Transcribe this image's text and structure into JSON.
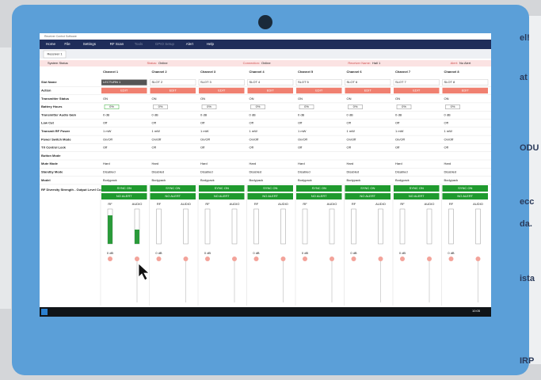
{
  "window_title": "Receiver Control Software",
  "menu": [
    "Home",
    "File",
    "Settings",
    "RF Scan",
    "Tools",
    "GPIO Setup",
    "Alert",
    "Help"
  ],
  "tab": "Receiver 1",
  "status": {
    "label": "System Status",
    "items": [
      {
        "label": "Status:",
        "value": "Online"
      },
      {
        "label": "Connection:",
        "value": "Online"
      },
      {
        "label": "Receiver Name:",
        "value": "Hall 1"
      },
      {
        "label": "Alert:",
        "value": "No Alert"
      }
    ]
  },
  "channels": [
    "Channel 1",
    "Channel 2",
    "Channel 3",
    "Channel 4",
    "Channel 5",
    "Channel 6",
    "Channel 7",
    "Channel 8"
  ],
  "rows": [
    {
      "label": "Slot Name",
      "values": [
        "LECTURN 1",
        "SLOT 2",
        "SLOT 3",
        "SLOT 4",
        "SLOT 5",
        "SLOT 6",
        "SLOT 7",
        "SLOT 8"
      ]
    },
    {
      "label": "Action",
      "values": [
        "EDIT",
        "EDIT",
        "EDIT",
        "EDIT",
        "EDIT",
        "EDIT",
        "EDIT",
        "EDIT"
      ]
    },
    {
      "label": "Transmitter Status",
      "values": [
        "ON",
        "ON",
        "ON",
        "ON",
        "ON",
        "ON",
        "ON",
        "ON"
      ]
    },
    {
      "label": "Battery Hours",
      "values": [
        "0%",
        "0%",
        "0%",
        "0%",
        "0%",
        "0%",
        "0%",
        "0%"
      ]
    },
    {
      "label": "Transmitter Audio Gain",
      "values": [
        "0 dB",
        "0 dB",
        "0 dB",
        "0 dB",
        "0 dB",
        "0 dB",
        "0 dB",
        "0 dB"
      ]
    },
    {
      "label": "Low Cut",
      "values": [
        "Off",
        "Off",
        "Off",
        "Off",
        "Off",
        "Off",
        "Off",
        "Off"
      ]
    },
    {
      "label": "Transmit RF Power",
      "values": [
        "1 mW",
        "1 mW",
        "1 mW",
        "1 mW",
        "1 mW",
        "1 mW",
        "1 mW",
        "1 mW"
      ]
    },
    {
      "label": "Power Switch Mode",
      "values": [
        "On/Off",
        "On/Off",
        "On/Off",
        "On/Off",
        "On/Off",
        "On/Off",
        "On/Off",
        "On/Off"
      ]
    },
    {
      "label": "TX Control Lock",
      "values": [
        "Off",
        "Off",
        "Off",
        "Off",
        "Off",
        "Off",
        "Off",
        "Off"
      ]
    },
    {
      "label": "Button Mode",
      "values": [
        null,
        null,
        null,
        null,
        null,
        null,
        null,
        null
      ]
    },
    {
      "label": "Mute Mode",
      "values": [
        "Hard",
        "Hard",
        "Hard",
        "Hard",
        "Hard",
        "Hard",
        "Hard",
        "Hard"
      ]
    },
    {
      "label": "Standby Mode",
      "values": [
        "Disabled",
        "Disabled",
        "Disabled",
        "Disabled",
        "Disabled",
        "Disabled",
        "Disabled",
        "Disabled"
      ]
    },
    {
      "label": "Model",
      "values": [
        "Bodypack",
        "Bodypack",
        "Bodypack",
        "Bodypack",
        "Bodypack",
        "Bodypack",
        "Bodypack",
        "Bodypack"
      ]
    }
  ],
  "controls_label": "RF Diversity Strength - Output Level Controls",
  "sync": "SYNC ON",
  "alert": "NO ALERT",
  "meter_labels": [
    "RF",
    "AUDIO"
  ],
  "output_levels": [
    "0 dB",
    "0 dB",
    "0 dB",
    "0 dB",
    "0 dB",
    "0 dB",
    "0 dB",
    "0 dB"
  ],
  "taskbar_time": "10:05",
  "side_texts": [
    "el!",
    "at",
    "ODU",
    "ecc",
    "da.",
    "ista",
    "IRP"
  ]
}
